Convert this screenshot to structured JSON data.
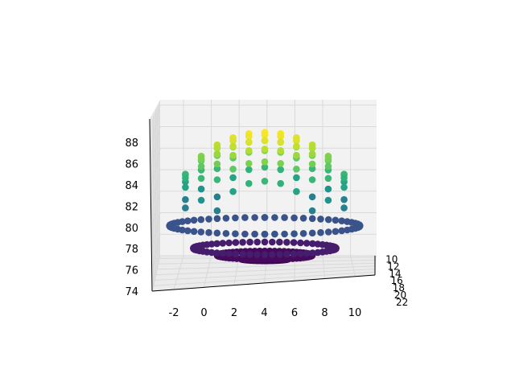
{
  "chart_data": {
    "type": "scatter",
    "projection": "3d",
    "title": "",
    "xlabel": "",
    "ylabel": "",
    "zlabel": "",
    "colormap": "viridis",
    "grid": true,
    "xlim": [
      -3,
      11.5
    ],
    "ylim": [
      9,
      22
    ],
    "zlim": [
      74,
      89.5
    ],
    "x_ticks": [
      "-2",
      "0",
      "2",
      "4",
      "6",
      "8",
      "10"
    ],
    "y_ticks": [
      "10",
      "12",
      "14",
      "16",
      "18",
      "20",
      "22"
    ],
    "z_ticks": [
      "74",
      "76",
      "78",
      "80",
      "82",
      "84",
      "86",
      "88"
    ],
    "surface": {
      "shape": "dome cap",
      "center_x": 4.0,
      "center_y": 15.5,
      "radius_xy": 6.5,
      "z_top": 88.8,
      "z_rim": 80.0
    }
  },
  "colors": {
    "pane": "#f2f2f2",
    "grid": "#d9d9d9",
    "axis_line": "#000000",
    "viridis": [
      "#440154",
      "#472c7a",
      "#3b518b",
      "#2c718e",
      "#21908d",
      "#27ad81",
      "#5cc863",
      "#aadc32",
      "#fde725"
    ]
  }
}
